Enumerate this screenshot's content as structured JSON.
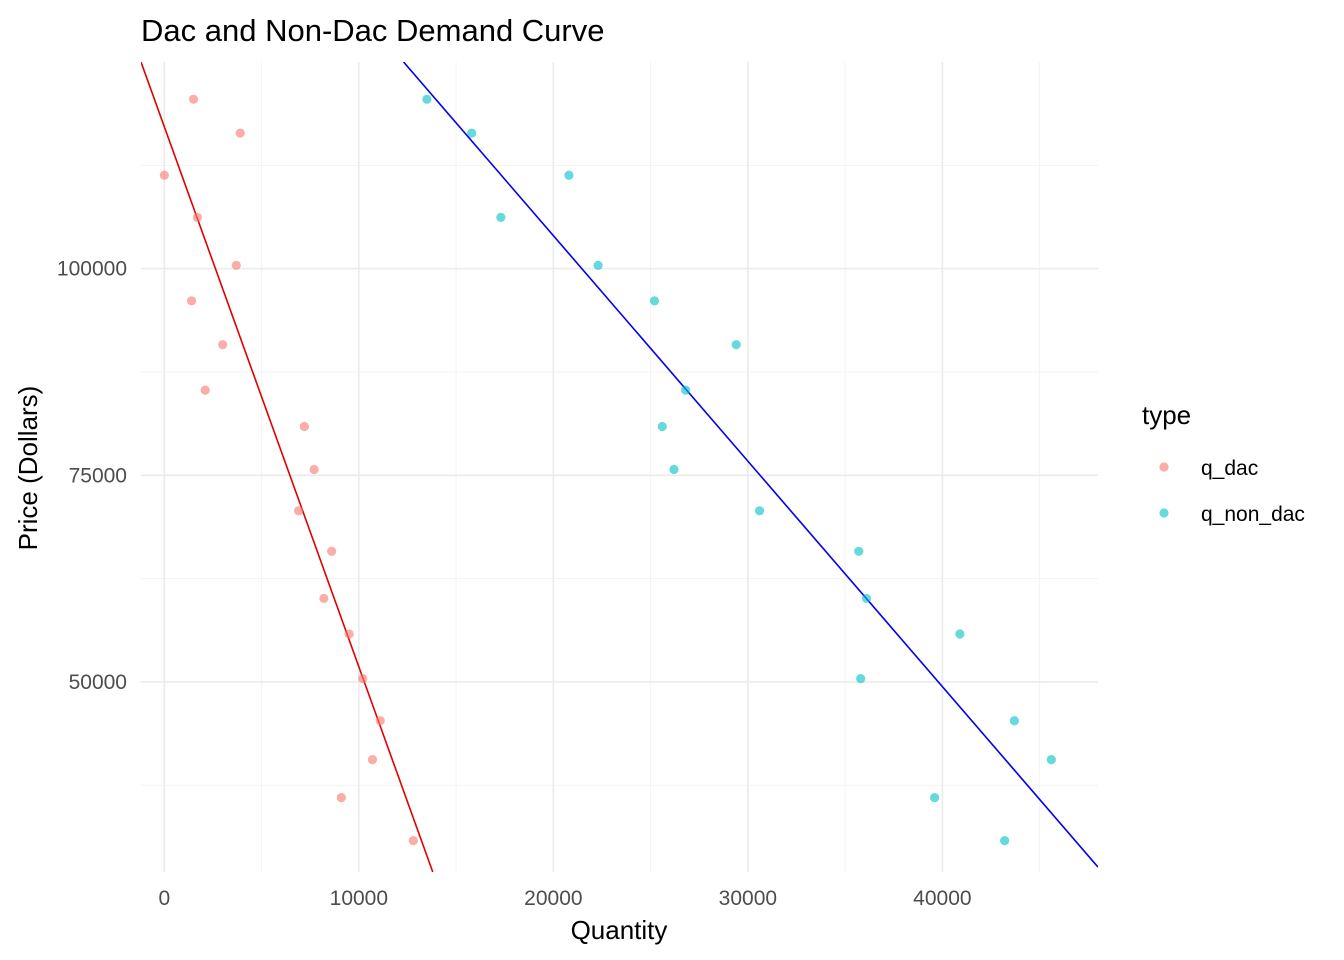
{
  "chart_data": {
    "type": "scatter",
    "title": "Dac and Non-Dac Demand Curve",
    "xlabel": "Quantity",
    "ylabel": "Price (Dollars)",
    "xlim": [
      -1200,
      48000
    ],
    "ylim": [
      27000,
      125000
    ],
    "x_ticks": [
      0,
      10000,
      20000,
      30000,
      40000
    ],
    "x_tick_labels": [
      "0",
      "10000",
      "20000",
      "30000",
      "40000"
    ],
    "x_minor_ticks": [
      5000,
      15000,
      25000,
      35000,
      45000
    ],
    "y_ticks": [
      50000,
      75000,
      100000
    ],
    "y_tick_labels": [
      "50000",
      "75000",
      "100000"
    ],
    "y_minor_ticks": [
      37500,
      62500,
      87500,
      112500
    ],
    "grid": true,
    "legend": {
      "title": "type",
      "position": "right"
    },
    "series": [
      {
        "name": "q_dac",
        "color": "#F8766D",
        "points": [
          {
            "x": 1500,
            "y": 120500
          },
          {
            "x": 3900,
            "y": 116400
          },
          {
            "x": 0,
            "y": 111300
          },
          {
            "x": 1700,
            "y": 106200
          },
          {
            "x": 3700,
            "y": 100400
          },
          {
            "x": 1400,
            "y": 96100
          },
          {
            "x": 3000,
            "y": 90800
          },
          {
            "x": 2100,
            "y": 85300
          },
          {
            "x": 7200,
            "y": 80900
          },
          {
            "x": 7700,
            "y": 75700
          },
          {
            "x": 6900,
            "y": 70700
          },
          {
            "x": 8600,
            "y": 65800
          },
          {
            "x": 8200,
            "y": 60100
          },
          {
            "x": 9500,
            "y": 55800
          },
          {
            "x": 10200,
            "y": 50400
          },
          {
            "x": 11100,
            "y": 45300
          },
          {
            "x": 10700,
            "y": 40600
          },
          {
            "x": 9100,
            "y": 36000
          },
          {
            "x": 12800,
            "y": 30800
          }
        ]
      },
      {
        "name": "q_non_dac",
        "color": "#00BFC4",
        "points": [
          {
            "x": 13500,
            "y": 120500
          },
          {
            "x": 15800,
            "y": 116400
          },
          {
            "x": 20800,
            "y": 111300
          },
          {
            "x": 17300,
            "y": 106200
          },
          {
            "x": 22300,
            "y": 100400
          },
          {
            "x": 25200,
            "y": 96100
          },
          {
            "x": 29400,
            "y": 90800
          },
          {
            "x": 26800,
            "y": 85300
          },
          {
            "x": 25600,
            "y": 80900
          },
          {
            "x": 26200,
            "y": 75700
          },
          {
            "x": 30600,
            "y": 70700
          },
          {
            "x": 35700,
            "y": 65800
          },
          {
            "x": 36100,
            "y": 60100
          },
          {
            "x": 40900,
            "y": 55800
          },
          {
            "x": 35800,
            "y": 50400
          },
          {
            "x": 43700,
            "y": 45300
          },
          {
            "x": 45600,
            "y": 40600
          },
          {
            "x": 39600,
            "y": 36000
          },
          {
            "x": 43200,
            "y": 30800
          }
        ]
      }
    ],
    "fit_lines": [
      {
        "color": "#E00000",
        "x1": -1200,
        "y1": 125000,
        "x2": 13800,
        "y2": 27000
      },
      {
        "color": "#0000EE",
        "x1": 12300,
        "y1": 125000,
        "x2": 48000,
        "y2": 27600
      }
    ]
  }
}
